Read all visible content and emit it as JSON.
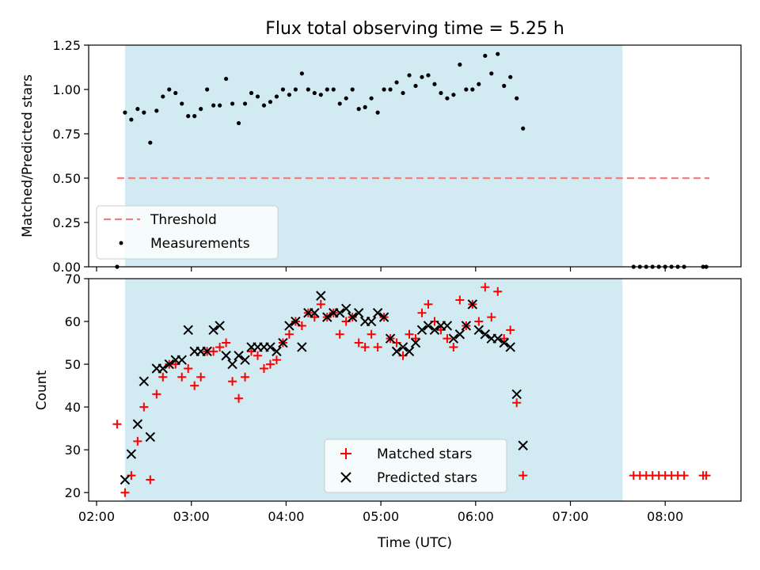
{
  "chart_data": {
    "title": "Flux total observing time = 5.25 h",
    "xlabel": "Time (UTC)",
    "x_ticks": [
      "02:00",
      "03:00",
      "04:00",
      "05:00",
      "06:00",
      "07:00",
      "08:00"
    ],
    "x_tick_minutes": [
      120,
      180,
      240,
      300,
      360,
      420,
      480
    ],
    "xlim_minutes": [
      115,
      528
    ],
    "x_units": "minutes after 00:00 UTC",
    "shaded_interval_minutes": [
      138,
      453
    ],
    "shade_color": "#add8e6",
    "panels": [
      {
        "type": "scatter",
        "ylabel": "Matched/Predicted stars",
        "ylim": [
          0,
          1.25
        ],
        "y_ticks": [
          "0.00",
          "0.25",
          "0.50",
          "0.75",
          "1.00",
          "1.25"
        ],
        "legend_location": "lower-left",
        "threshold": {
          "name": "Threshold",
          "value": 0.5,
          "x_start": 133,
          "x_end": 508,
          "color": "#f08080",
          "style": "dashed"
        },
        "series": [
          {
            "name": "Measurements",
            "marker": "dot",
            "color": "#000000",
            "points": [
              [
                133,
                0.0
              ],
              [
                138,
                0.87
              ],
              [
                142,
                0.83
              ],
              [
                146,
                0.89
              ],
              [
                150,
                0.87
              ],
              [
                154,
                0.7
              ],
              [
                158,
                0.88
              ],
              [
                162,
                0.96
              ],
              [
                166,
                1.0
              ],
              [
                170,
                0.98
              ],
              [
                174,
                0.92
              ],
              [
                178,
                0.85
              ],
              [
                182,
                0.85
              ],
              [
                186,
                0.89
              ],
              [
                190,
                1.0
              ],
              [
                194,
                0.91
              ],
              [
                198,
                0.91
              ],
              [
                202,
                1.06
              ],
              [
                206,
                0.92
              ],
              [
                210,
                0.81
              ],
              [
                214,
                0.92
              ],
              [
                218,
                0.98
              ],
              [
                222,
                0.96
              ],
              [
                226,
                0.91
              ],
              [
                230,
                0.93
              ],
              [
                234,
                0.96
              ],
              [
                238,
                1.0
              ],
              [
                242,
                0.97
              ],
              [
                246,
                1.0
              ],
              [
                250,
                1.09
              ],
              [
                254,
                1.0
              ],
              [
                258,
                0.98
              ],
              [
                262,
                0.97
              ],
              [
                266,
                1.0
              ],
              [
                270,
                1.0
              ],
              [
                274,
                0.92
              ],
              [
                278,
                0.95
              ],
              [
                282,
                1.0
              ],
              [
                286,
                0.89
              ],
              [
                290,
                0.9
              ],
              [
                294,
                0.95
              ],
              [
                298,
                0.87
              ],
              [
                302,
                1.0
              ],
              [
                306,
                1.0
              ],
              [
                310,
                1.04
              ],
              [
                314,
                0.98
              ],
              [
                318,
                1.08
              ],
              [
                322,
                1.02
              ],
              [
                326,
                1.07
              ],
              [
                330,
                1.08
              ],
              [
                334,
                1.03
              ],
              [
                338,
                0.98
              ],
              [
                342,
                0.95
              ],
              [
                346,
                0.97
              ],
              [
                350,
                1.14
              ],
              [
                354,
                1.0
              ],
              [
                358,
                1.0
              ],
              [
                362,
                1.03
              ],
              [
                366,
                1.19
              ],
              [
                370,
                1.09
              ],
              [
                374,
                1.2
              ],
              [
                378,
                1.02
              ],
              [
                382,
                1.07
              ],
              [
                386,
                0.95
              ],
              [
                390,
                0.78
              ],
              [
                460,
                0.0
              ],
              [
                464,
                0.0
              ],
              [
                468,
                0.0
              ],
              [
                472,
                0.0
              ],
              [
                476,
                0.0
              ],
              [
                480,
                0.0
              ],
              [
                484,
                0.0
              ],
              [
                488,
                0.0
              ],
              [
                492,
                0.0
              ],
              [
                504,
                0.0
              ],
              [
                506,
                0.0
              ]
            ]
          }
        ]
      },
      {
        "type": "scatter",
        "ylabel": "Count",
        "ylim": [
          18,
          70
        ],
        "y_ticks": [
          "20",
          "30",
          "40",
          "50",
          "60",
          "70"
        ],
        "legend_location": "lower-center",
        "series": [
          {
            "name": "Matched stars",
            "marker": "plus",
            "color": "#ff0000",
            "points": [
              [
                133,
                36
              ],
              [
                138,
                20
              ],
              [
                142,
                24
              ],
              [
                146,
                32
              ],
              [
                150,
                40
              ],
              [
                154,
                23
              ],
              [
                158,
                43
              ],
              [
                162,
                47
              ],
              [
                166,
                50
              ],
              [
                170,
                50
              ],
              [
                174,
                47
              ],
              [
                178,
                49
              ],
              [
                182,
                45
              ],
              [
                186,
                47
              ],
              [
                190,
                53
              ],
              [
                194,
                53
              ],
              [
                198,
                54
              ],
              [
                202,
                55
              ],
              [
                206,
                46
              ],
              [
                210,
                42
              ],
              [
                214,
                47
              ],
              [
                218,
                53
              ],
              [
                222,
                52
              ],
              [
                226,
                49
              ],
              [
                230,
                50
              ],
              [
                234,
                51
              ],
              [
                238,
                55
              ],
              [
                242,
                57
              ],
              [
                246,
                60
              ],
              [
                250,
                59
              ],
              [
                254,
                62
              ],
              [
                258,
                61
              ],
              [
                262,
                64
              ],
              [
                266,
                61
              ],
              [
                270,
                62
              ],
              [
                274,
                57
              ],
              [
                278,
                60
              ],
              [
                282,
                61
              ],
              [
                286,
                55
              ],
              [
                290,
                54
              ],
              [
                294,
                57
              ],
              [
                298,
                54
              ],
              [
                302,
                61
              ],
              [
                306,
                56
              ],
              [
                310,
                55
              ],
              [
                314,
                52
              ],
              [
                318,
                57
              ],
              [
                322,
                56
              ],
              [
                326,
                62
              ],
              [
                330,
                64
              ],
              [
                334,
                60
              ],
              [
                338,
                58
              ],
              [
                342,
                56
              ],
              [
                346,
                54
              ],
              [
                350,
                65
              ],
              [
                354,
                59
              ],
              [
                358,
                64
              ],
              [
                362,
                60
              ],
              [
                366,
                68
              ],
              [
                370,
                61
              ],
              [
                374,
                67
              ],
              [
                378,
                56
              ],
              [
                382,
                58
              ],
              [
                386,
                41
              ],
              [
                390,
                24
              ],
              [
                460,
                24
              ],
              [
                464,
                24
              ],
              [
                468,
                24
              ],
              [
                472,
                24
              ],
              [
                476,
                24
              ],
              [
                480,
                24
              ],
              [
                484,
                24
              ],
              [
                488,
                24
              ],
              [
                492,
                24
              ],
              [
                504,
                24
              ],
              [
                506,
                24
              ]
            ]
          },
          {
            "name": "Predicted stars",
            "marker": "x",
            "color": "#000000",
            "points": [
              [
                138,
                23
              ],
              [
                142,
                29
              ],
              [
                146,
                36
              ],
              [
                150,
                46
              ],
              [
                154,
                33
              ],
              [
                158,
                49
              ],
              [
                162,
                49
              ],
              [
                166,
                50
              ],
              [
                170,
                51
              ],
              [
                174,
                51
              ],
              [
                178,
                58
              ],
              [
                182,
                53
              ],
              [
                186,
                53
              ],
              [
                190,
                53
              ],
              [
                194,
                58
              ],
              [
                198,
                59
              ],
              [
                202,
                52
              ],
              [
                206,
                50
              ],
              [
                210,
                52
              ],
              [
                214,
                51
              ],
              [
                218,
                54
              ],
              [
                222,
                54
              ],
              [
                226,
                54
              ],
              [
                230,
                54
              ],
              [
                234,
                53
              ],
              [
                238,
                55
              ],
              [
                242,
                59
              ],
              [
                246,
                60
              ],
              [
                250,
                54
              ],
              [
                254,
                62
              ],
              [
                258,
                62
              ],
              [
                262,
                66
              ],
              [
                266,
                61
              ],
              [
                270,
                62
              ],
              [
                274,
                62
              ],
              [
                278,
                63
              ],
              [
                282,
                61
              ],
              [
                286,
                62
              ],
              [
                290,
                60
              ],
              [
                294,
                60
              ],
              [
                298,
                62
              ],
              [
                302,
                61
              ],
              [
                306,
                56
              ],
              [
                310,
                53
              ],
              [
                314,
                54
              ],
              [
                318,
                53
              ],
              [
                322,
                55
              ],
              [
                326,
                58
              ],
              [
                330,
                59
              ],
              [
                334,
                58
              ],
              [
                338,
                59
              ],
              [
                342,
                59
              ],
              [
                346,
                56
              ],
              [
                350,
                57
              ],
              [
                354,
                59
              ],
              [
                358,
                64
              ],
              [
                362,
                58
              ],
              [
                366,
                57
              ],
              [
                370,
                56
              ],
              [
                374,
                56
              ],
              [
                378,
                55
              ],
              [
                382,
                54
              ],
              [
                386,
                43
              ],
              [
                390,
                31
              ]
            ]
          }
        ]
      }
    ]
  }
}
